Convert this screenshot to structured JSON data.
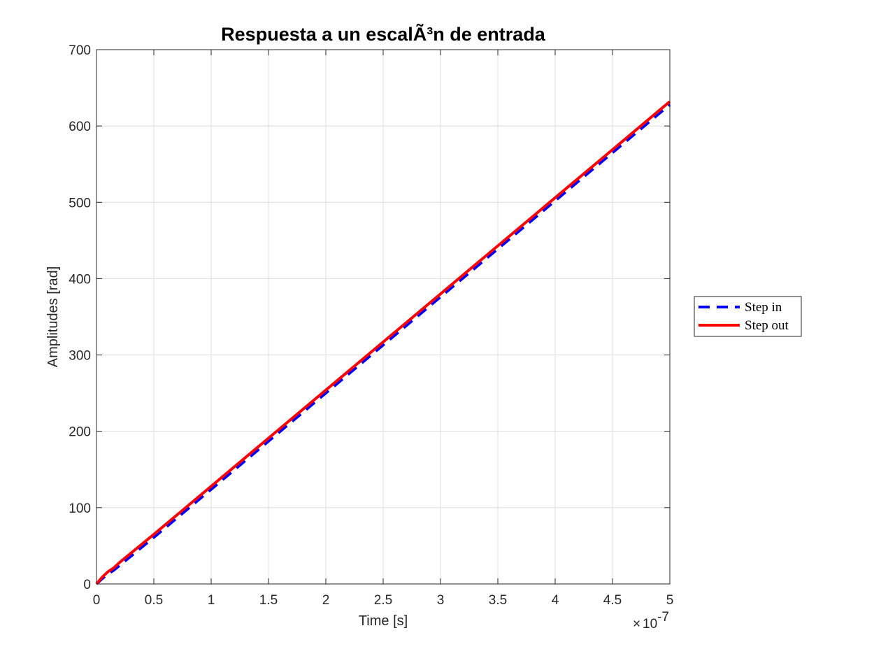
{
  "chart_data": {
    "type": "line",
    "title": "Respuesta a un escalÃ³n de entrada",
    "xlabel": "Time [s]",
    "ylabel": "Amplitudes [rad]",
    "x_multiplier": {
      "times": "×",
      "base": "10",
      "exponent": "-7"
    },
    "xlim": [
      0,
      5
    ],
    "ylim": [
      0,
      700
    ],
    "x_ticks": [
      0,
      0.5,
      1,
      1.5,
      2,
      2.5,
      3,
      3.5,
      4,
      4.5,
      5
    ],
    "x_tick_labels": [
      "0",
      "0.5",
      "1",
      "1.5",
      "2",
      "2.5",
      "3",
      "3.5",
      "4",
      "4.5",
      "5"
    ],
    "y_ticks": [
      0,
      100,
      200,
      300,
      400,
      500,
      600,
      700
    ],
    "y_tick_labels": [
      "0",
      "100",
      "200",
      "300",
      "400",
      "500",
      "600",
      "700"
    ],
    "grid": true,
    "legend_position": "outside-right",
    "series": [
      {
        "name": "Step in",
        "color": "#0000ff",
        "style": "dashed",
        "x": [
          0,
          0.05,
          0.1,
          0.15,
          0.2,
          0.5,
          1,
          1.5,
          2,
          2.5,
          3,
          3.5,
          4,
          4.5,
          5
        ],
        "y": [
          0,
          7,
          13,
          18,
          24,
          61,
          124,
          187,
          250,
          313,
          376,
          439,
          502,
          565,
          628
        ]
      },
      {
        "name": "Step out",
        "color": "#ff0000",
        "style": "solid",
        "x": [
          0,
          0.05,
          0.1,
          0.15,
          0.2,
          0.5,
          1,
          1.5,
          2,
          2.5,
          3,
          3.5,
          4,
          4.5,
          5
        ],
        "y": [
          0,
          9,
          16,
          21,
          28,
          65,
          128,
          191,
          254,
          317,
          380,
          443,
          506,
          569,
          632
        ]
      }
    ]
  }
}
